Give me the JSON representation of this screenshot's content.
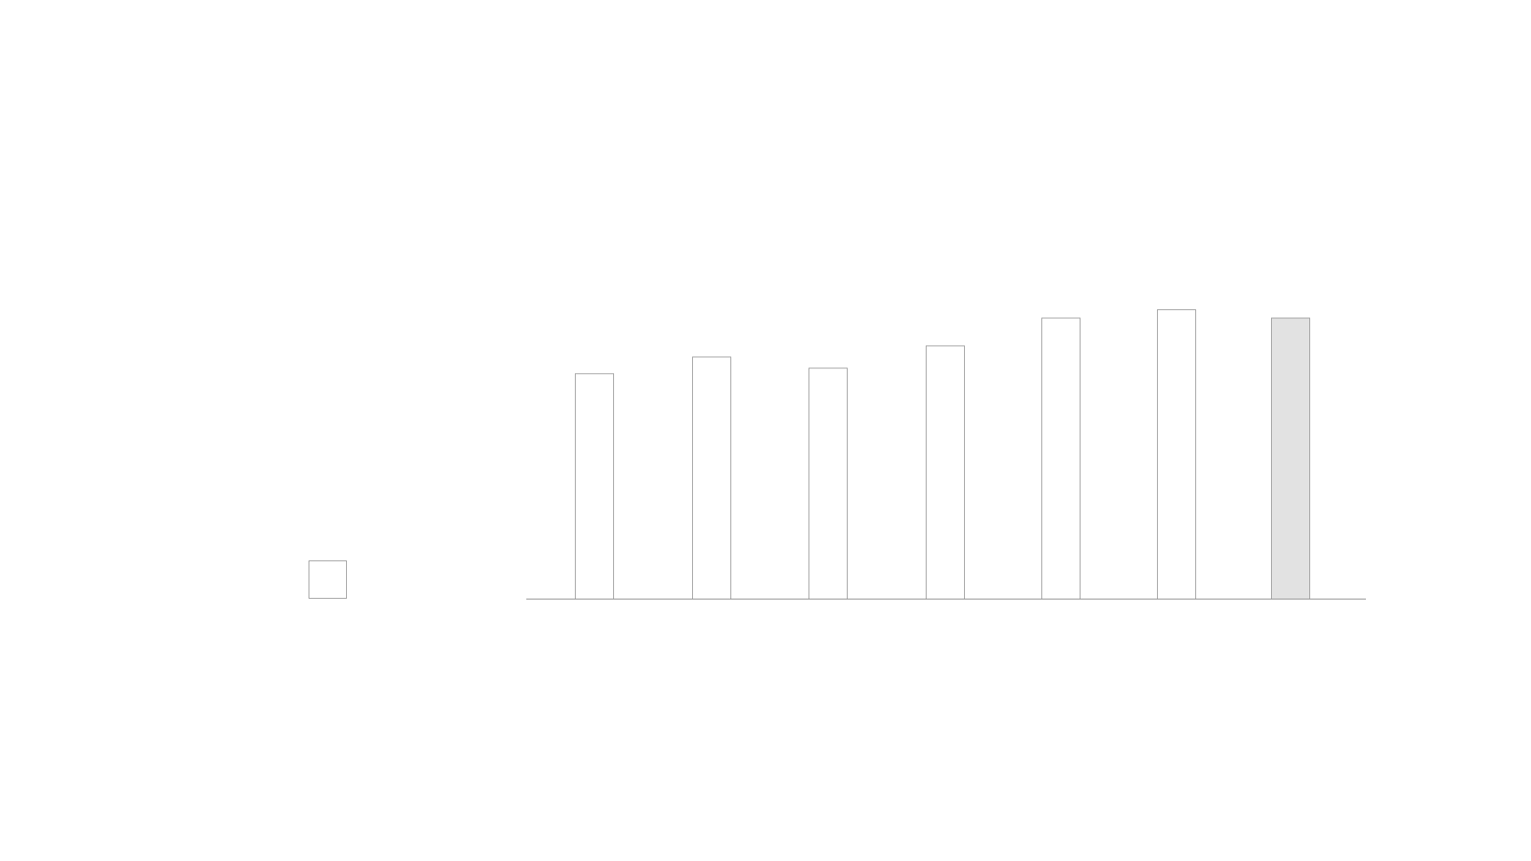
{
  "chart_data": {
    "type": "bar",
    "title": "",
    "xlabel": "",
    "ylabel": "",
    "categories": [
      "",
      "",
      "",
      "",
      "",
      "",
      ""
    ],
    "series": [
      {
        "values": [
          81,
          87,
          83,
          91,
          101,
          104,
          101
        ]
      }
    ],
    "highlight_index": 6,
    "ylim": [
      0,
      104
    ],
    "grid": false,
    "legend": "left",
    "colors": {
      "bar_fill": "#ffffff",
      "bar_highlight_fill": "#e2e2e2",
      "bar_stroke": "#9a9a9a",
      "axis": "#9a9a9a"
    }
  }
}
